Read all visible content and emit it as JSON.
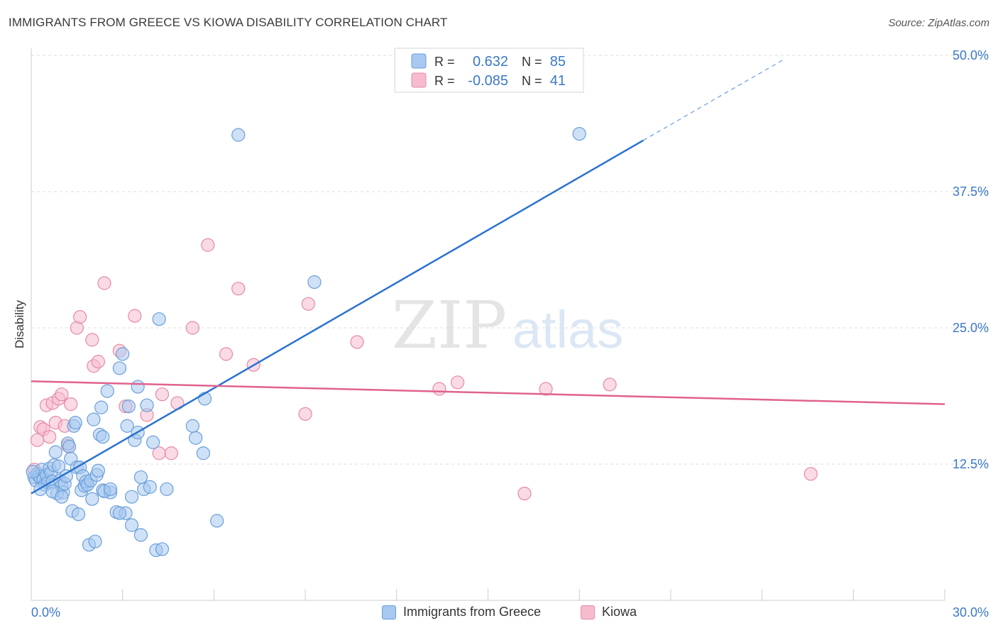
{
  "title": "IMMIGRANTS FROM GREECE VS KIOWA DISABILITY CORRELATION CHART",
  "source": "Source: ZipAtlas.com",
  "watermark": {
    "zip": "ZIP",
    "atlas": "atlas"
  },
  "colors": {
    "blue_fill": "#a8c8f0",
    "blue_stroke": "#6a9fd8",
    "blue_line": "#2b72d0",
    "pink_fill": "#f6bccd",
    "pink_stroke": "#e58aa6",
    "pink_line": "#e0628e",
    "axis_label_blue": "#3b78c8",
    "grid": "#dddddd"
  },
  "legend_top": {
    "rows": [
      {
        "r_label": "R =",
        "r_value": "0.632",
        "n_label": "N =",
        "n_value": "85"
      },
      {
        "r_label": "R =",
        "r_value": "-0.085",
        "n_label": "N =",
        "n_value": "41"
      }
    ]
  },
  "chart_data": {
    "type": "scatter",
    "title": "IMMIGRANTS FROM GREECE VS KIOWA DISABILITY CORRELATION CHART",
    "xlabel": "",
    "ylabel": "Disability",
    "xlim": [
      0,
      30
    ],
    "ylim": [
      0,
      50
    ],
    "x_tick_labels": [
      "0.0%",
      "30.0%"
    ],
    "y_tick_values": [
      12.5,
      25.0,
      37.5,
      50.0
    ],
    "y_tick_labels": [
      "12.5%",
      "25.0%",
      "37.5%",
      "50.0%"
    ],
    "legend": [
      "Immigrants from Greece",
      "Kiowa"
    ],
    "series": [
      {
        "name": "Immigrants from Greece",
        "r": 0.632,
        "n": 85,
        "trend": {
          "x0": 0,
          "y0": 9.8,
          "x1": 20.1,
          "y1": 42.2,
          "dash_x1": 24.7,
          "dash_y1": 49.6
        },
        "points": [
          [
            0.1,
            11.3
          ],
          [
            0.15,
            11.0
          ],
          [
            0.2,
            11.6
          ],
          [
            0.25,
            11.4
          ],
          [
            0.3,
            11.2
          ],
          [
            0.35,
            12.0
          ],
          [
            0.4,
            11.1
          ],
          [
            0.45,
            10.6
          ],
          [
            0.5,
            11.5
          ],
          [
            0.55,
            10.8
          ],
          [
            0.6,
            12.1
          ],
          [
            0.65,
            11.7
          ],
          [
            0.7,
            10.9
          ],
          [
            0.75,
            12.4
          ],
          [
            0.8,
            13.6
          ],
          [
            0.85,
            9.8
          ],
          [
            0.9,
            12.3
          ],
          [
            0.95,
            11.0
          ],
          [
            1.0,
            10.5
          ],
          [
            1.05,
            9.9
          ],
          [
            1.1,
            10.7
          ],
          [
            1.15,
            11.4
          ],
          [
            1.2,
            14.4
          ],
          [
            1.25,
            14.1
          ],
          [
            1.3,
            13.0
          ],
          [
            1.35,
            8.2
          ],
          [
            1.4,
            16.0
          ],
          [
            1.45,
            16.3
          ],
          [
            1.5,
            12.2
          ],
          [
            1.55,
            7.9
          ],
          [
            1.6,
            12.2
          ],
          [
            1.65,
            10.1
          ],
          [
            1.7,
            11.4
          ],
          [
            1.75,
            10.5
          ],
          [
            1.8,
            10.9
          ],
          [
            1.85,
            10.6
          ],
          [
            1.9,
            5.1
          ],
          [
            1.95,
            11.0
          ],
          [
            2.0,
            9.3
          ],
          [
            2.05,
            16.6
          ],
          [
            2.1,
            5.4
          ],
          [
            2.15,
            11.5
          ],
          [
            2.2,
            11.9
          ],
          [
            2.25,
            15.2
          ],
          [
            2.3,
            17.7
          ],
          [
            2.35,
            10.1
          ],
          [
            2.5,
            19.2
          ],
          [
            2.6,
            9.9
          ],
          [
            2.35,
            15.0
          ],
          [
            2.4,
            10.0
          ],
          [
            2.6,
            10.2
          ],
          [
            2.8,
            8.1
          ],
          [
            3.0,
            22.6
          ],
          [
            3.1,
            8.0
          ],
          [
            2.9,
            21.3
          ],
          [
            3.15,
            16.0
          ],
          [
            3.2,
            17.8
          ],
          [
            3.3,
            6.9
          ],
          [
            3.4,
            14.7
          ],
          [
            3.5,
            19.6
          ],
          [
            3.5,
            15.4
          ],
          [
            3.6,
            6.0
          ],
          [
            3.7,
            10.2
          ],
          [
            3.8,
            17.9
          ],
          [
            3.9,
            10.4
          ],
          [
            4.0,
            14.5
          ],
          [
            3.6,
            11.3
          ],
          [
            3.3,
            9.5
          ],
          [
            4.1,
            4.6
          ],
          [
            4.3,
            4.7
          ],
          [
            4.45,
            10.2
          ],
          [
            4.2,
            25.8
          ],
          [
            5.4,
            14.9
          ],
          [
            5.3,
            16.0
          ],
          [
            5.65,
            13.5
          ],
          [
            5.7,
            18.5
          ],
          [
            6.1,
            7.3
          ],
          [
            6.8,
            42.7
          ],
          [
            9.3,
            29.2
          ],
          [
            18.0,
            42.8
          ],
          [
            0.05,
            11.8
          ],
          [
            0.3,
            10.2
          ],
          [
            0.7,
            10.0
          ],
          [
            1.0,
            9.5
          ],
          [
            2.9,
            8.0
          ]
        ]
      },
      {
        "name": "Kiowa",
        "r": -0.085,
        "n": 41,
        "trend": {
          "x0": 0,
          "y0": 20.1,
          "x1": 30,
          "y1": 18.0
        },
        "points": [
          [
            0.1,
            12.0
          ],
          [
            0.2,
            14.7
          ],
          [
            0.3,
            15.9
          ],
          [
            0.4,
            15.7
          ],
          [
            0.5,
            17.9
          ],
          [
            0.6,
            15.0
          ],
          [
            0.7,
            18.1
          ],
          [
            0.8,
            16.3
          ],
          [
            0.9,
            18.5
          ],
          [
            1.0,
            18.9
          ],
          [
            1.1,
            16.0
          ],
          [
            1.2,
            14.2
          ],
          [
            1.3,
            18.0
          ],
          [
            1.5,
            25.0
          ],
          [
            1.6,
            26.0
          ],
          [
            2.0,
            23.9
          ],
          [
            2.05,
            21.5
          ],
          [
            2.2,
            21.9
          ],
          [
            2.4,
            29.1
          ],
          [
            2.9,
            22.9
          ],
          [
            3.1,
            17.8
          ],
          [
            3.4,
            26.1
          ],
          [
            3.8,
            17.0
          ],
          [
            4.2,
            13.5
          ],
          [
            4.3,
            18.9
          ],
          [
            4.6,
            13.5
          ],
          [
            4.8,
            18.1
          ],
          [
            5.3,
            25.0
          ],
          [
            5.8,
            32.6
          ],
          [
            6.4,
            22.6
          ],
          [
            6.8,
            28.6
          ],
          [
            7.3,
            21.6
          ],
          [
            9.0,
            17.1
          ],
          [
            9.1,
            27.2
          ],
          [
            10.7,
            23.7
          ],
          [
            13.4,
            19.4
          ],
          [
            14.0,
            20.0
          ],
          [
            16.2,
            9.8
          ],
          [
            16.9,
            19.4
          ],
          [
            19.0,
            19.8
          ],
          [
            25.6,
            11.6
          ]
        ]
      }
    ]
  }
}
